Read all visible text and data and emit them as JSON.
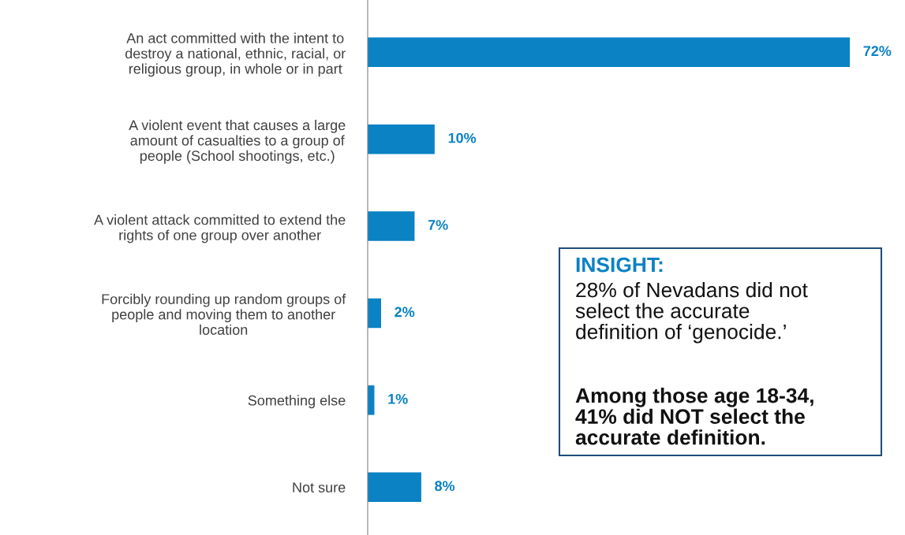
{
  "chart_data": {
    "type": "bar",
    "orientation": "horizontal",
    "categories": [
      "An act committed with the intent to\ndestroy a national, ethnic, racial, or\nreligious group, in whole or in part",
      "A violent event that causes a large\namount of casualties to a group of\npeople (School shootings, etc.)",
      "A violent attack committed to extend the\nrights of one group over another",
      "Forcibly rounding up random groups of\npeople and moving them to another\nlocation",
      "Something else",
      "Not sure"
    ],
    "values": [
      72,
      10,
      7,
      2,
      1,
      8
    ],
    "value_labels": [
      "72%",
      "10%",
      "7%",
      "2%",
      "1%",
      "8%"
    ],
    "color": "#0a82c4",
    "tick_labels": "y",
    "grid": false,
    "legend": false,
    "annotations": [
      "INSIGHT:",
      "28% of Nevadans did not\nselect the accurate\ndefinition of ‘genocide.’",
      "Among those age 18-34,\n41% did NOT select the\naccurate definition."
    ]
  }
}
